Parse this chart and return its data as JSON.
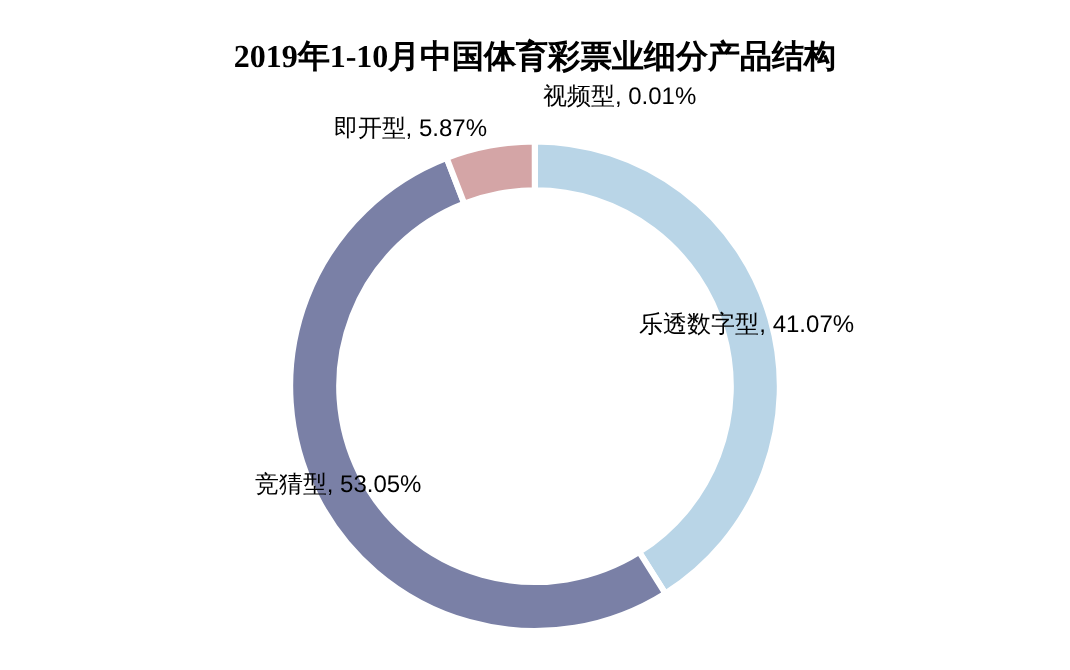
{
  "chart_data": {
    "type": "donut",
    "title": "2019年1-10月中国体育彩票业细分产品结构",
    "categories": [
      "乐透数字型",
      "竞猜型",
      "即开型",
      "视频型"
    ],
    "values": [
      41.07,
      53.05,
      5.87,
      0.01
    ],
    "value_labels": [
      "41.07%",
      "53.05%",
      "5.87%",
      "0.01%"
    ],
    "colors": [
      "#b9d5e7",
      "#7a80a6",
      "#d4a5a6",
      "#a8c8dc"
    ],
    "legend": false
  }
}
